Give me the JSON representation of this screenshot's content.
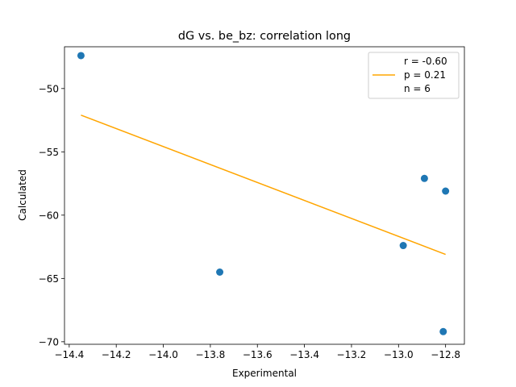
{
  "chart_data": {
    "type": "scatter",
    "title": "dG vs. be_bz: correlation long",
    "xlabel": "Experimental",
    "ylabel": "Calculated",
    "xlim": [
      -14.42,
      -12.72
    ],
    "ylim": [
      -70.2,
      -46.7
    ],
    "xticks": [
      -14.4,
      -14.2,
      -14.0,
      -13.8,
      -13.6,
      -13.4,
      -13.2,
      -13.0,
      -12.8
    ],
    "xtick_labels": [
      "−14.4",
      "−14.2",
      "−14.0",
      "−13.8",
      "−13.6",
      "−13.4",
      "−13.2",
      "−13.0",
      "−12.8"
    ],
    "yticks": [
      -70,
      -65,
      -60,
      -55,
      -50
    ],
    "ytick_labels": [
      "−70",
      "−65",
      "−60",
      "−55",
      "−50"
    ],
    "points": [
      {
        "x": -14.35,
        "y": -47.4
      },
      {
        "x": -13.76,
        "y": -64.5
      },
      {
        "x": -12.98,
        "y": -62.4
      },
      {
        "x": -12.89,
        "y": -57.1
      },
      {
        "x": -12.8,
        "y": -58.1
      },
      {
        "x": -12.81,
        "y": -69.2
      }
    ],
    "fit_line": {
      "x": [
        -14.35,
        -12.8
      ],
      "y": [
        -52.1,
        -63.1
      ]
    },
    "legend": {
      "position": "top-right",
      "lines": [
        "r = -0.60",
        "p = 0.21",
        "n = 6"
      ]
    },
    "colors": {
      "points": "#1f77b4",
      "fit_line": "#ffa500"
    },
    "grid": false
  }
}
